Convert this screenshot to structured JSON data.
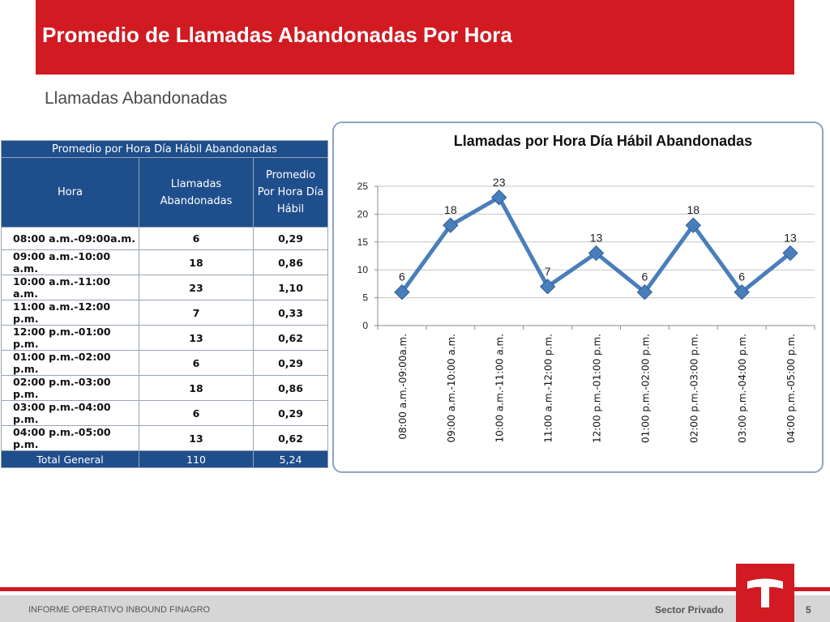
{
  "header": {
    "title": "Promedio de Llamadas Abandonadas Por Hora"
  },
  "subtitle": "Llamadas Abandonadas",
  "table": {
    "caption": "Promedio por Hora Día  Hábil Abandonadas",
    "columns": [
      [
        "Hora"
      ],
      [
        "Llamadas",
        "Abandonadas"
      ],
      [
        "Promedio",
        "Por Hora Día",
        "Hábil"
      ]
    ],
    "rows": [
      [
        "08:00 a.m.-09:00a.m.",
        "6",
        "0,29"
      ],
      [
        "09:00 a.m.-10:00 a.m.",
        "18",
        "0,86"
      ],
      [
        "10:00 a.m.-11:00 a.m.",
        "23",
        "1,10"
      ],
      [
        "11:00 a.m.-12:00 p.m.",
        "7",
        "0,33"
      ],
      [
        "12:00 p.m.-01:00 p.m.",
        "13",
        "0,62"
      ],
      [
        "01:00 p.m.-02:00 p.m.",
        "6",
        "0,29"
      ],
      [
        "02:00 p.m.-03:00 p.m.",
        "18",
        "0,86"
      ],
      [
        "03:00 p.m.-04:00 p.m.",
        "6",
        "0,29"
      ],
      [
        "04:00 p.m.-05:00 p.m.",
        "13",
        "0,62"
      ]
    ],
    "total": [
      "Total General",
      "110",
      "5,24"
    ]
  },
  "chart_data": {
    "type": "line",
    "title": "Llamadas por Hora Día  Hábil Abandonadas",
    "categories": [
      "08:00 a.m.-09:00a.m.",
      "09:00 a.m.-10:00 a.m.",
      "10:00 a.m.-11:00 a.m.",
      "11:00 a.m.-12:00 p.m.",
      "12:00 p.m.-01:00 p.m.",
      "01:00 p.m.-02:00 p.m.",
      "02:00 p.m.-03:00 p.m.",
      "03:00 p.m.-04:00 p.m.",
      "04:00 p.m.-05:00 p.m."
    ],
    "values": [
      6,
      18,
      23,
      7,
      13,
      6,
      18,
      6,
      13
    ],
    "ylim": [
      0,
      25
    ],
    "yticks": [
      0,
      5,
      10,
      15,
      20,
      25
    ],
    "grid": true,
    "marker": "diamond",
    "color": "#4a7ebb"
  },
  "footer": {
    "left": "INFORME OPERATIVO INBOUND FINAGRO",
    "right": "Sector Privado",
    "page": "5"
  },
  "colors": {
    "brand_red": "#d11a22",
    "table_blue": "#1f4e8c"
  }
}
